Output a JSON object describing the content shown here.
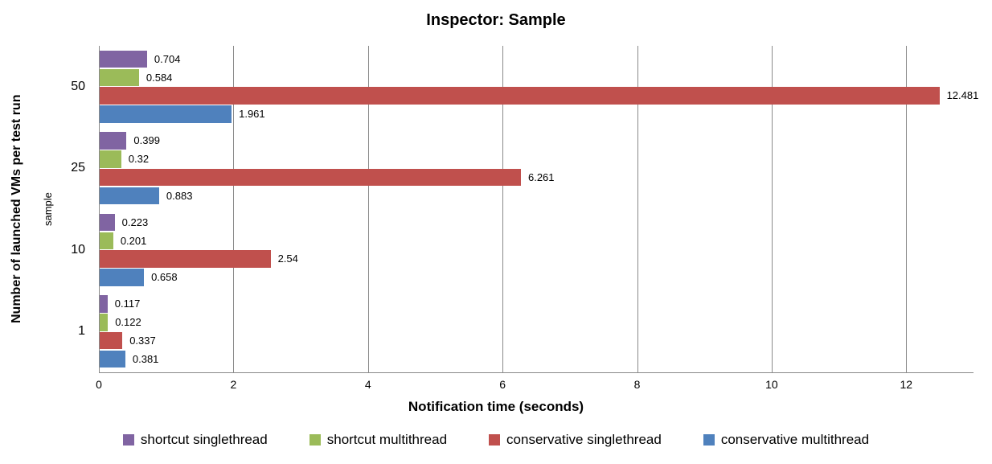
{
  "title": "Inspector: Sample",
  "chart_data": {
    "type": "bar",
    "orientation": "horizontal",
    "title": "Inspector: Sample",
    "xlabel": "Notification time (seconds)",
    "ylabel": "Number of launched VMs per test run",
    "ylabel_secondary": "sample",
    "categories": [
      "50",
      "25",
      "10",
      "1"
    ],
    "series": [
      {
        "name": "shortcut singlethread",
        "color": "#8064A2",
        "values": [
          0.704,
          0.399,
          0.223,
          0.117
        ],
        "labels": [
          "0.704",
          "0.399",
          "0.223",
          "0.117"
        ]
      },
      {
        "name": "shortcut multithread",
        "color": "#9BBB59",
        "values": [
          0.584,
          0.32,
          0.201,
          0.122
        ],
        "labels": [
          "0.584",
          "0.32",
          "0.201",
          "0.122"
        ]
      },
      {
        "name": "conservative singlethread",
        "color": "#C0504D",
        "values": [
          12.481,
          6.261,
          2.54,
          0.337
        ],
        "labels": [
          "12.481",
          "6.261",
          "2.54",
          "0.337"
        ]
      },
      {
        "name": "conservative multithread",
        "color": "#4F81BD",
        "values": [
          1.961,
          0.883,
          0.658,
          0.381
        ],
        "labels": [
          "1.961",
          "0.883",
          "0.658",
          "0.381"
        ]
      }
    ],
    "xlim": [
      0,
      13
    ],
    "xticks": [
      0,
      2,
      4,
      6,
      8,
      10,
      12
    ],
    "grid": true,
    "legend_position": "bottom"
  },
  "colors": {
    "gridline": "#8A8A8A",
    "axis": "#8A8A8A",
    "text": "#000000",
    "background": "#FFFFFF"
  }
}
